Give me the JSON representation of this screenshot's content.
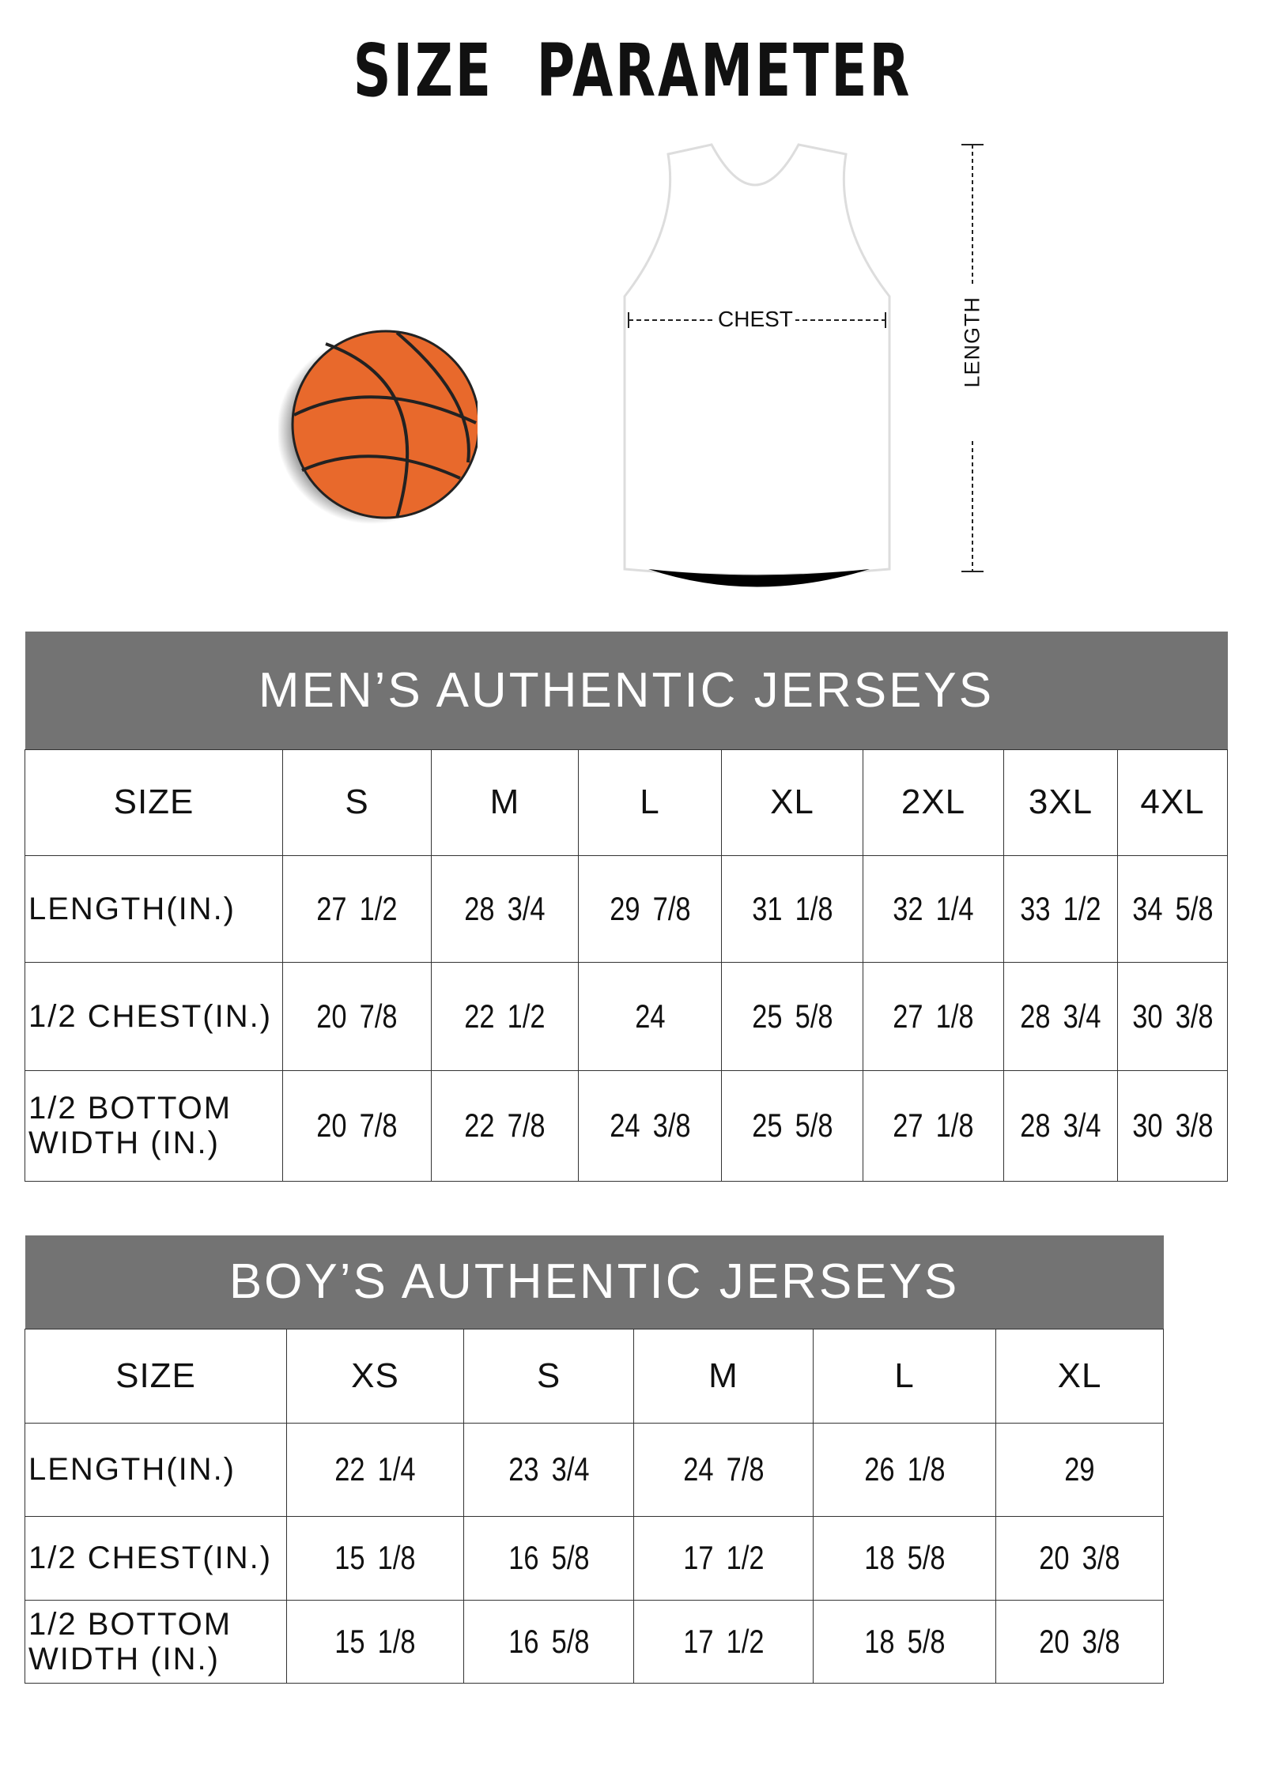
{
  "title": "SIZE PARAMETER",
  "diagram": {
    "chest_label": "CHEST",
    "length_label": "LENGTH"
  },
  "colors": {
    "header_bg": "#737373",
    "ball": "#e8692c"
  },
  "mens": {
    "heading": "MEN’S AUTHENTIC JERSEYS",
    "columns": [
      "SIZE",
      "S",
      "M",
      "L",
      "XL",
      "2XL",
      "3XL",
      "4XL"
    ],
    "rows": [
      {
        "label": "LENGTH(IN.)",
        "values": [
          "27 1/2",
          "28 3/4",
          "29 7/8",
          "31 1/8",
          "32 1/4",
          "33 1/2",
          "34 5/8"
        ]
      },
      {
        "label": "1/2 CHEST(IN.)",
        "values": [
          "20 7/8",
          "22 1/2",
          "24",
          "25 5/8",
          "27 1/8",
          "28 3/4",
          "30 3/8"
        ]
      },
      {
        "label": "1/2 BOTTOM WIDTH (IN.)",
        "values": [
          "20 7/8",
          "22 7/8",
          "24 3/8",
          "25 5/8",
          "27 1/8",
          "28 3/4",
          "30 3/8"
        ]
      }
    ]
  },
  "boys": {
    "heading": "BOY’S AUTHENTIC JERSEYS",
    "columns": [
      "SIZE",
      "XS",
      "S",
      "M",
      "L",
      "XL"
    ],
    "rows": [
      {
        "label": "LENGTH(IN.)",
        "values": [
          "22 1/4",
          "23 3/4",
          "24 7/8",
          "26 1/8",
          "29"
        ]
      },
      {
        "label": "1/2 CHEST(IN.)",
        "values": [
          "15 1/8",
          "16 5/8",
          "17 1/2",
          "18 5/8",
          "20 3/8"
        ]
      },
      {
        "label": "1/2 BOTTOM WIDTH (IN.)",
        "values": [
          "15 1/8",
          "16 5/8",
          "17 1/2",
          "18 5/8",
          "20 3/8"
        ]
      }
    ]
  }
}
